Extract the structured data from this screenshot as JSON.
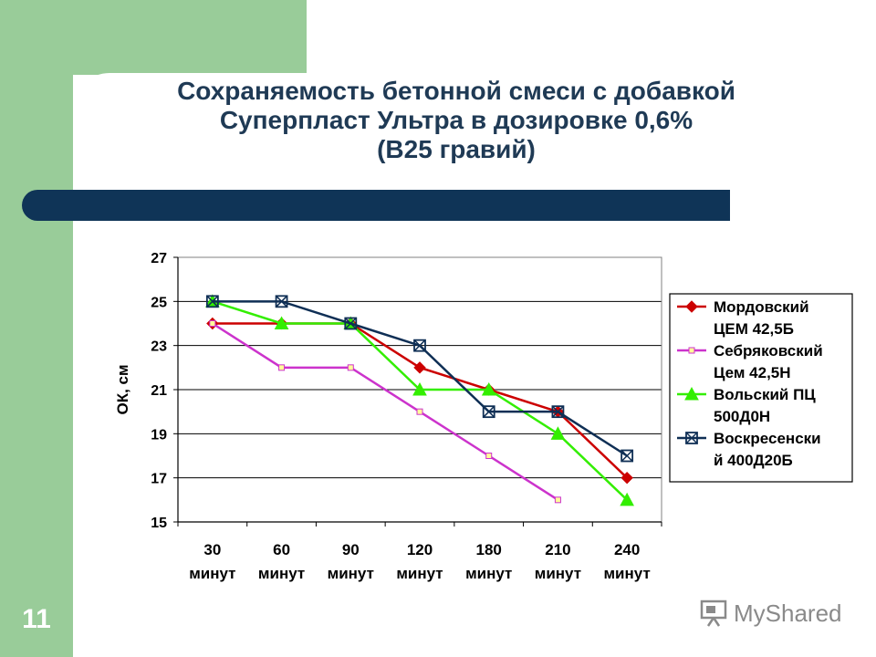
{
  "slide": {
    "title_lines": [
      "Сохраняемость бетонной смеси с добавкой",
      "Суперпласт Ультра в дозировке 0,6%",
      "(В25 гравий)"
    ],
    "page_number": "11",
    "watermark_text": "MyShared"
  },
  "colors": {
    "band": "#99cc99",
    "bar": "#0f3457",
    "title": "#1f3a55"
  },
  "chart_data": {
    "type": "line",
    "title": "",
    "xlabel": "",
    "ylabel": "ОК, см",
    "categories": [
      [
        "30",
        "минут"
      ],
      [
        "60",
        "минут"
      ],
      [
        "90",
        "минут"
      ],
      [
        "120",
        "минут"
      ],
      [
        "180",
        "минут"
      ],
      [
        "210",
        "минут"
      ],
      [
        "240",
        "минут"
      ]
    ],
    "ylim": [
      15,
      27
    ],
    "yticks": [
      15,
      17,
      19,
      21,
      23,
      25,
      27
    ],
    "grid": true,
    "legend_position": "right",
    "series": [
      {
        "name_lines": [
          "Мордовский",
          "ЦЕМ 42,5Б"
        ],
        "color": "#cc0000",
        "marker": "diamond",
        "values": [
          24,
          24,
          24,
          22,
          21,
          20,
          17
        ]
      },
      {
        "name_lines": [
          "Себряковский",
          "Цем 42,5Н"
        ],
        "color": "#cc33cc",
        "marker": "square-small",
        "values": [
          24,
          22,
          22,
          20,
          18,
          16,
          null
        ]
      },
      {
        "name_lines": [
          "Вольский ПЦ",
          "500Д0Н"
        ],
        "color": "#33ee00",
        "marker": "triangle",
        "values": [
          25,
          24,
          24,
          21,
          21,
          19,
          16
        ]
      },
      {
        "name_lines": [
          "Воскресенски",
          "й 400Д20Б"
        ],
        "color": "#0f2f55",
        "marker": "square-x",
        "values": [
          25,
          25,
          24,
          23,
          20,
          20,
          18
        ]
      }
    ]
  }
}
